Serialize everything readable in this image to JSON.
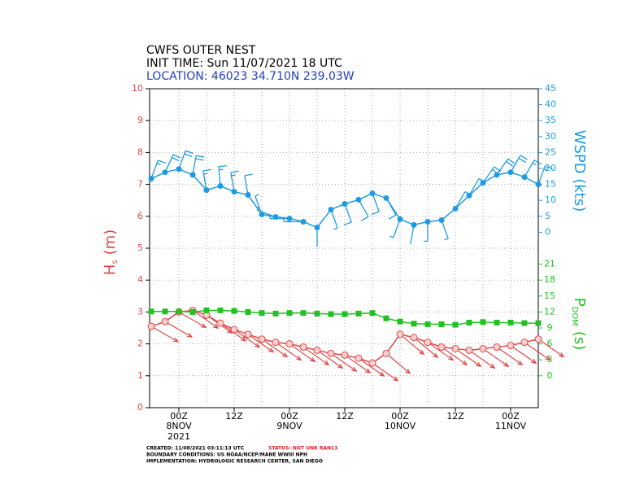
{
  "chart_data": {
    "type": "meteogram",
    "title": "CWFS OUTER NEST",
    "init": "INIT TIME: Sun 11/07/2021 18 UTC",
    "location": "LOCATION: 46023 34.710N 239.03W",
    "categories": [
      null,
      null,
      "00Z",
      null,
      null,
      null,
      "12Z",
      null,
      null,
      null,
      "00Z",
      null,
      null,
      null,
      "12Z",
      null,
      null,
      null,
      "00Z",
      null,
      null,
      null,
      "12Z",
      null,
      null,
      null,
      "00Z",
      null,
      null
    ],
    "dates": [
      null,
      null,
      "8NOV",
      null,
      null,
      null,
      null,
      null,
      null,
      null,
      "9NOV",
      null,
      null,
      null,
      null,
      null,
      null,
      null,
      "10NOV",
      null,
      null,
      null,
      null,
      null,
      null,
      null,
      "11NOV",
      null,
      null
    ],
    "year": "2021",
    "ylim": [
      0,
      10
    ],
    "yticks": [
      0,
      1,
      2,
      3,
      4,
      5,
      6,
      7,
      8,
      9,
      10
    ],
    "y2lim": [
      -55,
      45
    ],
    "y2ticks": [
      0,
      5,
      10,
      15,
      20,
      25,
      30,
      35,
      40,
      45
    ],
    "y3lim": [
      -6,
      54
    ],
    "y3ticks": [
      0,
      3,
      6,
      9,
      12,
      15,
      18,
      21
    ],
    "grid": true,
    "ylabel": {
      "main": "H",
      "sub": "s",
      "unit": "(m)"
    },
    "y2label": "WSPD (kts)",
    "y3label": {
      "main": "P",
      "sub": "DOM",
      "unit": "(s)"
    },
    "series": [
      {
        "color": "#e04848",
        "axis": "y",
        "values": [
          2.55,
          2.7,
          3.0,
          3.05,
          2.9,
          2.65,
          2.45,
          2.3,
          2.15,
          2.05,
          2.0,
          1.9,
          1.8,
          1.7,
          1.65,
          1.55,
          1.4,
          1.7,
          2.3,
          2.2,
          2.05,
          1.9,
          1.85,
          1.8,
          1.85,
          1.9,
          1.95,
          2.05,
          2.15
        ],
        "directions": [
          300,
          300,
          300,
          305,
          305,
          305,
          305,
          305,
          305,
          305,
          305,
          305,
          305,
          305,
          305,
          305,
          305,
          310,
          310,
          310,
          305,
          305,
          305,
          305,
          305,
          305,
          305,
          305,
          305
        ]
      },
      {
        "color": "#22c022",
        "axis": "y3",
        "values": [
          12.1,
          12.1,
          12.1,
          12.0,
          12.3,
          12.3,
          12.2,
          12.0,
          11.8,
          11.7,
          11.8,
          11.8,
          11.7,
          11.6,
          11.6,
          11.7,
          11.8,
          10.8,
          10.2,
          9.8,
          9.7,
          9.7,
          9.6,
          10.0,
          10.1,
          10.0,
          10.0,
          9.9,
          9.9
        ]
      },
      {
        "color": "#1e9be0",
        "axis": "y2",
        "values": [
          16.8,
          18.8,
          19.8,
          18.0,
          13.2,
          14.5,
          12.7,
          11.7,
          5.6,
          4.8,
          4.3,
          3.3,
          1.5,
          7.1,
          8.9,
          10.2,
          12.2,
          10.7,
          4.1,
          2.3,
          3.3,
          3.8,
          7.4,
          11.5,
          15.5,
          18.0,
          18.8,
          17.3,
          15.0
        ],
        "directions": [
          20,
          25,
          20,
          10,
          350,
          355,
          350,
          350,
          340,
          290,
          270,
          270,
          180,
          160,
          160,
          150,
          160,
          150,
          200,
          190,
          180,
          160,
          30,
          30,
          35,
          35,
          30,
          30,
          20
        ]
      }
    ],
    "created": "CREATED: 11/08/2021 03:11:13 UTC",
    "status": "STATUS: NOT UNK RAN13",
    "boundary": "BOUNDARY CONDITIONS: US NOAA/NCEP/MANE WWIII NPH",
    "implementation": "IMPLEMENTATION: HYDROLOGIC RESEARCH CENTER, SAN DIEGO"
  }
}
